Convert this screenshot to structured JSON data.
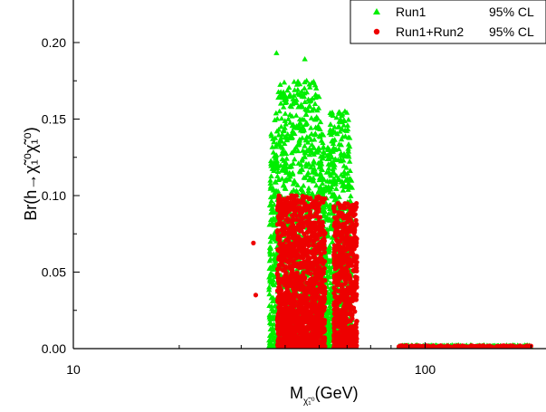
{
  "chart_data": {
    "type": "scatter",
    "title": "",
    "xlabel": "M",
    "xlabel_sub": "χ̃₁⁰",
    "xlabel_unit": "(GeV)",
    "ylabel": "Br(h→χ̃₁⁰χ̃₁⁰)",
    "x_scale": "log",
    "xlim": [
      10,
      200
    ],
    "ylim": [
      0,
      0.225
    ],
    "x_ticks": [
      10,
      100
    ],
    "x_tick_labels": [
      "10",
      "100"
    ],
    "y_ticks": [
      0.0,
      0.05,
      0.1,
      0.15,
      0.2
    ],
    "y_tick_labels": [
      "0.00",
      "0.05",
      "0.10",
      "0.15",
      "0.20"
    ],
    "legend_position": "top-right",
    "series": [
      {
        "name": "Run1",
        "cl_label": "95% CL",
        "marker": "triangle",
        "color": "#00ee00",
        "clusters": [
          {
            "x_range": [
              36,
              52
            ],
            "y_max": 0.175,
            "count": 1400
          },
          {
            "x_range": [
              52,
              62
            ],
            "y_max": 0.155,
            "count": 700
          }
        ],
        "extra_points": [
          [
            37.8,
            0.193
          ],
          [
            45.5,
            0.189
          ],
          [
            38,
            0.15
          ],
          [
            36.5,
            0.14
          ]
        ],
        "tail": {
          "x_range": [
            84,
            200
          ],
          "y_max": 0.002,
          "count": 300
        }
      },
      {
        "name": "Run1+Run2",
        "cl_label": "95% CL",
        "marker": "circle",
        "color": "#ee0000",
        "clusters": [
          {
            "x_range": [
              38,
              52
            ],
            "y_max": 0.1,
            "count": 1500
          },
          {
            "x_range": [
              55,
              64
            ],
            "y_max": 0.095,
            "count": 700
          }
        ],
        "extra_points": [
          [
            32.5,
            0.069
          ],
          [
            33,
            0.035
          ]
        ],
        "tail": {
          "x_range": [
            84,
            200
          ],
          "y_max": 0.002,
          "count": 250
        }
      }
    ]
  },
  "legend": {
    "items": [
      {
        "label": "Run1",
        "cl": "95% CL"
      },
      {
        "label": "Run1+Run2",
        "cl": "95% CL"
      }
    ]
  }
}
